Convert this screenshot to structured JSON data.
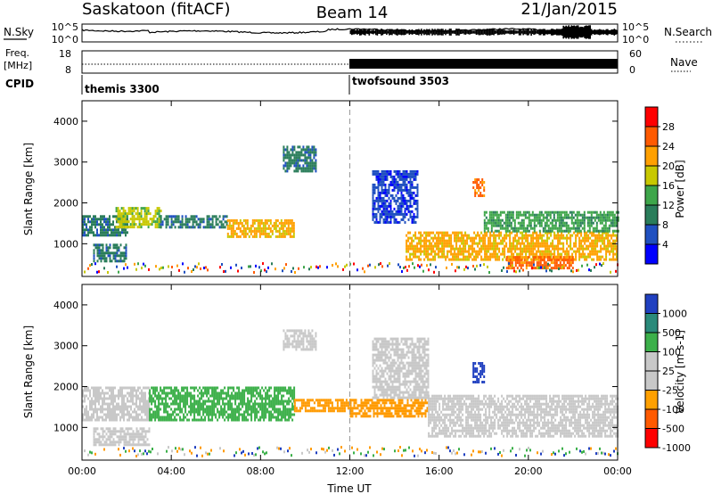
{
  "header": {
    "site": "Saskatoon (fitACF)",
    "beam": "Beam 14",
    "date": "21/Jan/2015"
  },
  "strips": {
    "nsky_label": "N.Sky",
    "nsearch_label": "N.Search",
    "nsky_ticks": [
      "10^5",
      "10^0"
    ],
    "nsearch_ticks": [
      "10^5",
      "10^0"
    ],
    "freq_label_1": "Freq.",
    "freq_label_2": "[MHz]",
    "freq_ticks": [
      "18",
      "8"
    ],
    "nave_label": "Nave",
    "nave_ticks": [
      "60",
      "0"
    ],
    "cpid_label": "CPID",
    "cpid_segments": [
      {
        "start_hour": 0,
        "end_hour": 12,
        "label": "themis 3300"
      },
      {
        "start_hour": 12,
        "end_hour": 24,
        "label": "twofsound 3503"
      }
    ]
  },
  "chart_data": [
    {
      "type": "heatmap",
      "name": "power",
      "xlabel": "Time UT",
      "ylabel": "Slant Range [km]",
      "xlim": [
        0,
        24
      ],
      "ylim": [
        200,
        4500
      ],
      "x_ticks": [
        "00:00",
        "04:00",
        "08:00",
        "12:00",
        "16:00",
        "20:00",
        "00:00"
      ],
      "x_tick_hours": [
        0,
        4,
        8,
        12,
        16,
        20,
        24
      ],
      "y_ticks": [
        1000,
        2000,
        3000,
        4000
      ],
      "colorbar": {
        "label": "Power [dB]",
        "ticks": [
          "4",
          "8",
          "12",
          "16",
          "20",
          "24",
          "28"
        ],
        "range": [
          0,
          30
        ],
        "colors": [
          "#0000ff",
          "#2050c0",
          "#2a7d5a",
          "#3ea64a",
          "#c8c800",
          "#ffa000",
          "#ff5a00",
          "#ff0000"
        ]
      },
      "echo_bands": [
        {
          "t_start": 0.0,
          "t_end": 2.0,
          "range_km": [
            1200,
            1700
          ],
          "power_db": 8
        },
        {
          "t_start": 0.5,
          "t_end": 2.0,
          "range_km": [
            600,
            1000
          ],
          "power_db": 10
        },
        {
          "t_start": 1.5,
          "t_end": 3.5,
          "range_km": [
            1400,
            1900
          ],
          "power_db": 16
        },
        {
          "t_start": 3.5,
          "t_end": 6.5,
          "range_km": [
            1400,
            1700
          ],
          "power_db": 10
        },
        {
          "t_start": 6.5,
          "t_end": 9.5,
          "range_km": [
            1200,
            1600
          ],
          "power_db": 20
        },
        {
          "t_start": 9.0,
          "t_end": 10.5,
          "range_km": [
            2800,
            3400
          ],
          "power_db": 8
        },
        {
          "t_start": 13.0,
          "t_end": 15.0,
          "range_km": [
            1500,
            2800
          ],
          "power_db": 6
        },
        {
          "t_start": 14.5,
          "t_end": 24.0,
          "range_km": [
            600,
            1300
          ],
          "power_db": 22
        },
        {
          "t_start": 17.5,
          "t_end": 18.0,
          "range_km": [
            2200,
            2600
          ],
          "power_db": 24
        },
        {
          "t_start": 19.0,
          "t_end": 22.0,
          "range_km": [
            400,
            700
          ],
          "power_db": 26
        },
        {
          "t_start": 18.0,
          "t_end": 24.0,
          "range_km": [
            1300,
            1800
          ],
          "power_db": 12
        }
      ]
    },
    {
      "type": "heatmap",
      "name": "velocity",
      "xlabel": "Time UT",
      "ylabel": "Slant Range [km]",
      "xlim": [
        0,
        24
      ],
      "ylim": [
        200,
        4500
      ],
      "x_ticks": [
        "00:00",
        "04:00",
        "08:00",
        "12:00",
        "16:00",
        "20:00",
        "00:00"
      ],
      "x_tick_hours": [
        0,
        4,
        8,
        12,
        16,
        20,
        24
      ],
      "y_ticks": [
        1000,
        2000,
        3000,
        4000
      ],
      "colorbar": {
        "label": "Velocity [m s-1]",
        "ticks": [
          "1000",
          "500",
          "100",
          "25",
          "-25",
          "-100",
          "-500",
          "-1000"
        ],
        "colors": [
          "#2040c0",
          "#2a8a7a",
          "#3cb04a",
          "#c8c8c8",
          "#c8c8c8",
          "#ffa000",
          "#ff5a00",
          "#ff0000"
        ]
      },
      "echo_bands": [
        {
          "t_start": 0.0,
          "t_end": 3.0,
          "range_km": [
            1200,
            2000
          ],
          "class": "ground"
        },
        {
          "t_start": 0.5,
          "t_end": 3.0,
          "range_km": [
            600,
            1000
          ],
          "class": "ground"
        },
        {
          "t_start": 3.0,
          "t_end": 9.5,
          "range_km": [
            1200,
            2000
          ],
          "velocity": 100
        },
        {
          "t_start": 9.5,
          "t_end": 12.0,
          "range_km": [
            1400,
            1700
          ],
          "velocity": -100
        },
        {
          "t_start": 9.0,
          "t_end": 10.5,
          "range_km": [
            2900,
            3400
          ],
          "class": "ground"
        },
        {
          "t_start": 12.0,
          "t_end": 15.5,
          "range_km": [
            1300,
            1700
          ],
          "velocity": -100
        },
        {
          "t_start": 13.0,
          "t_end": 15.5,
          "range_km": [
            1700,
            3200
          ],
          "class": "ground"
        },
        {
          "t_start": 15.5,
          "t_end": 24.0,
          "range_km": [
            800,
            1800
          ],
          "class": "ground"
        },
        {
          "t_start": 17.5,
          "t_end": 18.0,
          "range_km": [
            2100,
            2600
          ],
          "velocity": 1000
        }
      ]
    }
  ]
}
